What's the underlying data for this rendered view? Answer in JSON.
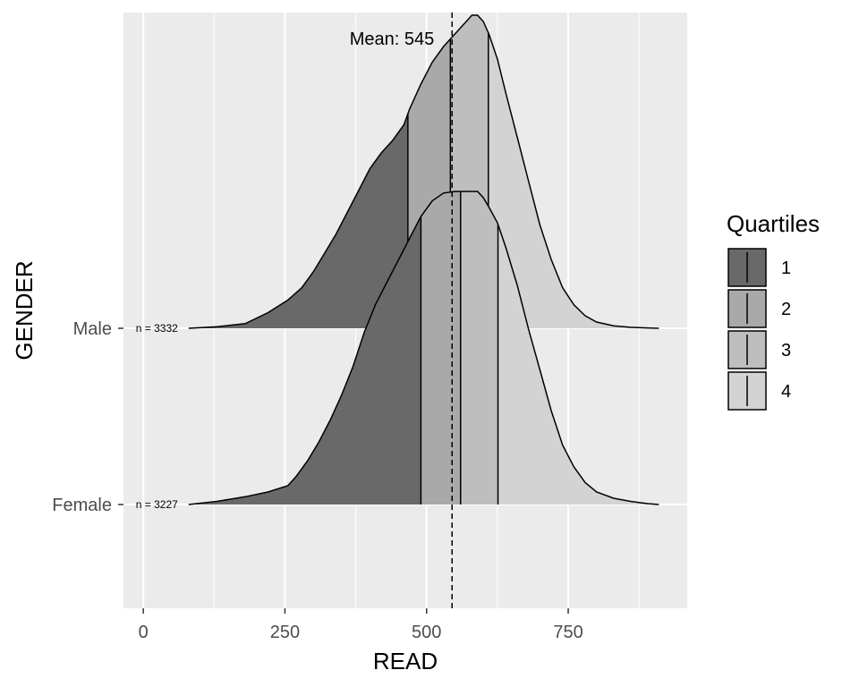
{
  "chart_data": {
    "type": "area",
    "subtype": "ridgeline-density",
    "xlabel": "READ",
    "ylabel": "GENDER",
    "xlim": [
      -35,
      960
    ],
    "x_ticks": [
      0,
      250,
      500,
      750
    ],
    "x_minor_ticks": [
      125,
      375,
      625,
      875
    ],
    "categories": [
      "Female",
      "Male"
    ],
    "grid": true,
    "legend": {
      "title": "Quartiles",
      "position": "right",
      "entries": [
        {
          "label": "1",
          "color": "#696969"
        },
        {
          "label": "2",
          "color": "#a9a9a9"
        },
        {
          "label": "3",
          "color": "#bebebe"
        },
        {
          "label": "4",
          "color": "#d3d3d3"
        }
      ]
    },
    "mean": {
      "value": 545,
      "label": "Mean: 545"
    },
    "series": [
      {
        "category": "Female",
        "n_label": "n = 3227",
        "quartiles": [
          490,
          560,
          626
        ],
        "density_x": [
          80,
          130,
          180,
          220,
          255,
          270,
          290,
          310,
          330,
          350,
          370,
          390,
          410,
          430,
          450,
          470,
          490,
          510,
          530,
          550,
          560,
          570,
          590,
          600,
          610,
          625,
          640,
          660,
          680,
          700,
          720,
          740,
          760,
          780,
          800,
          830,
          860,
          890,
          910
        ],
        "density_y": [
          0,
          0.01,
          0.025,
          0.04,
          0.06,
          0.09,
          0.14,
          0.2,
          0.27,
          0.35,
          0.44,
          0.55,
          0.64,
          0.71,
          0.78,
          0.85,
          0.92,
          0.97,
          0.995,
          1.0,
          1.0,
          1.0,
          1.0,
          0.98,
          0.95,
          0.9,
          0.82,
          0.7,
          0.56,
          0.43,
          0.3,
          0.19,
          0.12,
          0.07,
          0.04,
          0.02,
          0.01,
          0.003,
          0
        ]
      },
      {
        "category": "Male",
        "n_label": "n = 3332",
        "quartiles": [
          467,
          542,
          609
        ],
        "density_x": [
          80,
          130,
          180,
          220,
          255,
          280,
          300,
          320,
          340,
          360,
          380,
          400,
          420,
          440,
          460,
          470,
          490,
          510,
          530,
          550,
          560,
          570,
          580,
          590,
          600,
          610,
          625,
          640,
          660,
          680,
          700,
          720,
          740,
          760,
          780,
          800,
          830,
          860,
          890,
          910
        ],
        "density_y": [
          0,
          0.005,
          0.015,
          0.05,
          0.09,
          0.13,
          0.18,
          0.24,
          0.3,
          0.37,
          0.44,
          0.51,
          0.56,
          0.6,
          0.65,
          0.7,
          0.78,
          0.85,
          0.9,
          0.94,
          0.96,
          0.98,
          1.0,
          1.0,
          0.98,
          0.94,
          0.86,
          0.75,
          0.61,
          0.47,
          0.33,
          0.22,
          0.13,
          0.075,
          0.04,
          0.02,
          0.008,
          0.003,
          0.001,
          0
        ]
      }
    ]
  }
}
